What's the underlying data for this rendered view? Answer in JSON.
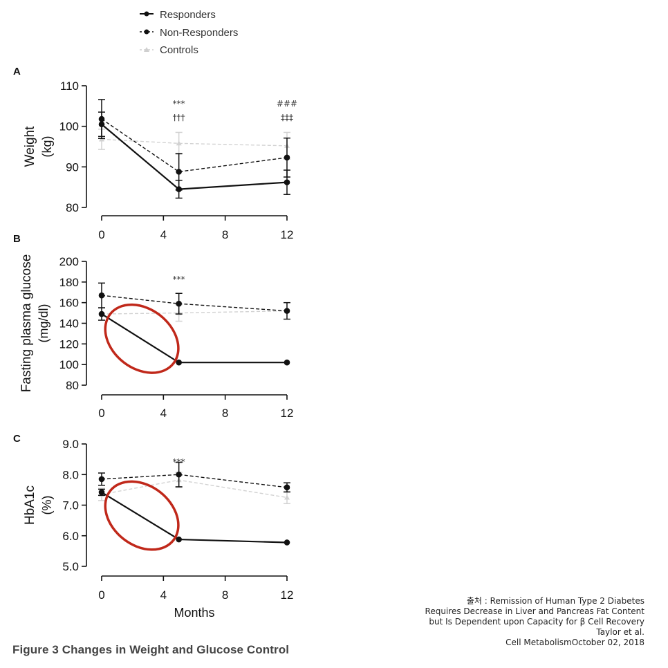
{
  "legend": [
    {
      "name": "Responders",
      "style": "solid",
      "color": "#111111"
    },
    {
      "name": "Non-Responders",
      "style": "dashed",
      "color": "#111111"
    },
    {
      "name": "Controls",
      "style": "dashed-light",
      "color": "#c8c8c8"
    }
  ],
  "x_label": "Months",
  "caption": "Figure 3 Changes in Weight and Glucose Control",
  "source_lines": [
    "출처 : Remission of Human Type 2 Diabetes",
    "Requires Decrease in Liver and Pancreas Fat Content",
    "but Is Dependent upon Capacity for β Cell Recovery",
    "Taylor et al.",
    "Cell MetabolismOctober 02, 2018"
  ],
  "highlight_color": "#c0281a",
  "chart_data": [
    {
      "type": "line",
      "panel": "A",
      "ylabel": "Weight",
      "yunit": "(kg)",
      "xlim": [
        0,
        12
      ],
      "xticks": [
        0,
        4,
        8,
        12
      ],
      "ylim": [
        80,
        110
      ],
      "yticks": [
        "80",
        "90",
        "100",
        "110"
      ],
      "x": [
        0,
        5,
        12
      ],
      "series": [
        {
          "name": "Responders",
          "values": [
            100.5,
            84.5,
            86.2
          ],
          "err": [
            3,
            2.2,
            3
          ]
        },
        {
          "name": "Non-Responders",
          "values": [
            101.8,
            88.8,
            92.3
          ],
          "err": [
            4.8,
            4.5,
            4.8
          ]
        },
        {
          "name": "Controls",
          "values": [
            96.8,
            95.8,
            95.2
          ],
          "err": [
            2.5,
            2.7,
            3.3
          ]
        }
      ],
      "annotations": [
        {
          "x": 5,
          "lines": [
            "***",
            "†††"
          ]
        },
        {
          "x": 12,
          "lines": [
            "###",
            "‡‡‡"
          ]
        }
      ]
    },
    {
      "type": "line",
      "panel": "B",
      "ylabel": "Fasting plasma glucose",
      "yunit": "(mg/dl)",
      "xlim": [
        0,
        12
      ],
      "xticks": [
        0,
        4,
        8,
        12
      ],
      "ylim": [
        80,
        200
      ],
      "yticks": [
        "80",
        "100",
        "120",
        "140",
        "160",
        "180",
        "200"
      ],
      "x": [
        0,
        5,
        12
      ],
      "series": [
        {
          "name": "Responders",
          "values": [
            149,
            102,
            102
          ],
          "err": [
            6,
            0,
            0
          ]
        },
        {
          "name": "Non-Responders",
          "values": [
            167,
            159,
            152
          ],
          "err": [
            12,
            10,
            8
          ]
        },
        {
          "name": "Controls",
          "values": [
            149,
            150,
            152
          ],
          "err": [
            0,
            8,
            0
          ]
        }
      ],
      "annotations": [
        {
          "x": 5,
          "lines": [
            "***"
          ]
        }
      ],
      "highlight": {
        "cx": 2.6,
        "cy": 125,
        "rx": 58,
        "ry": 43,
        "rotate": 38
      }
    },
    {
      "type": "line",
      "panel": "C",
      "ylabel": "HbA1c",
      "yunit": "(%)",
      "xlim": [
        0,
        12
      ],
      "xticks": [
        0,
        4,
        8,
        12
      ],
      "ylim": [
        5.0,
        9.0
      ],
      "yticks": [
        "5.0",
        "6.0",
        "7.0",
        "8.0",
        "9.0"
      ],
      "x": [
        0,
        5,
        12
      ],
      "series": [
        {
          "name": "Responders",
          "values": [
            7.42,
            5.88,
            5.78
          ],
          "err": [
            0.1,
            0,
            0
          ]
        },
        {
          "name": "Non-Responders",
          "values": [
            7.85,
            8.0,
            7.58
          ],
          "err": [
            0.2,
            0.4,
            0.15
          ]
        },
        {
          "name": "Controls",
          "values": [
            7.35,
            7.82,
            7.25
          ],
          "err": [
            0.2,
            0.25,
            0.2
          ]
        }
      ],
      "annotations": [
        {
          "x": 5,
          "lines": [
            "***"
          ]
        }
      ],
      "highlight": {
        "cx": 2.6,
        "cy": 6.66,
        "rx": 58,
        "ry": 43,
        "rotate": 38
      }
    }
  ]
}
